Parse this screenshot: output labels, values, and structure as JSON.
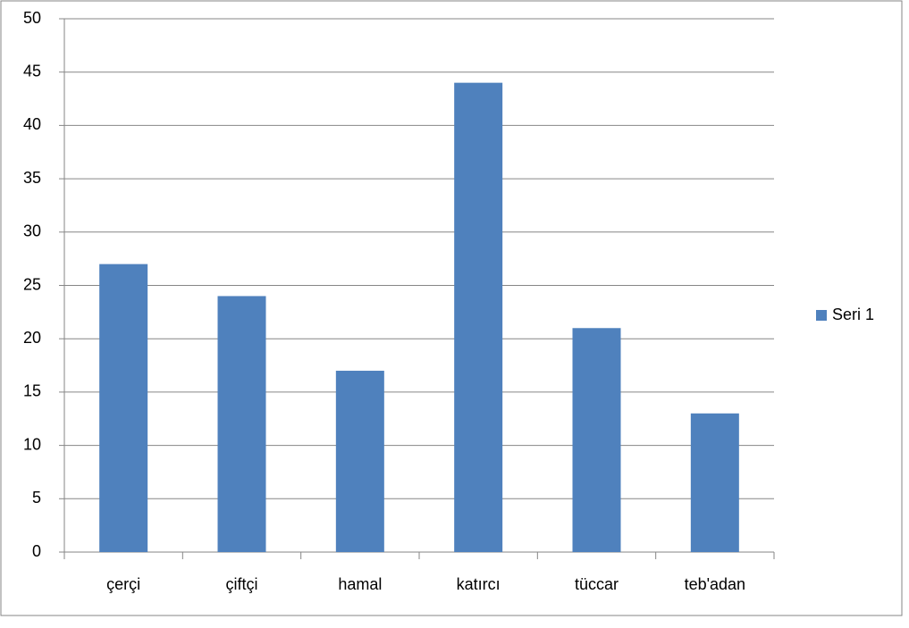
{
  "chart_data": {
    "type": "bar",
    "categories": [
      "çerçi",
      "çiftçi",
      "hamal",
      "katırcı",
      "tüccar",
      "teb'adan"
    ],
    "series": [
      {
        "name": "Seri 1",
        "color": "#4f81bd",
        "values": [
          27,
          24,
          17,
          44,
          21,
          13
        ]
      }
    ],
    "ylim": [
      0,
      50
    ],
    "yticks": [
      0,
      5,
      10,
      15,
      20,
      25,
      30,
      35,
      40,
      45,
      50
    ],
    "grid": true,
    "legend": "right"
  }
}
